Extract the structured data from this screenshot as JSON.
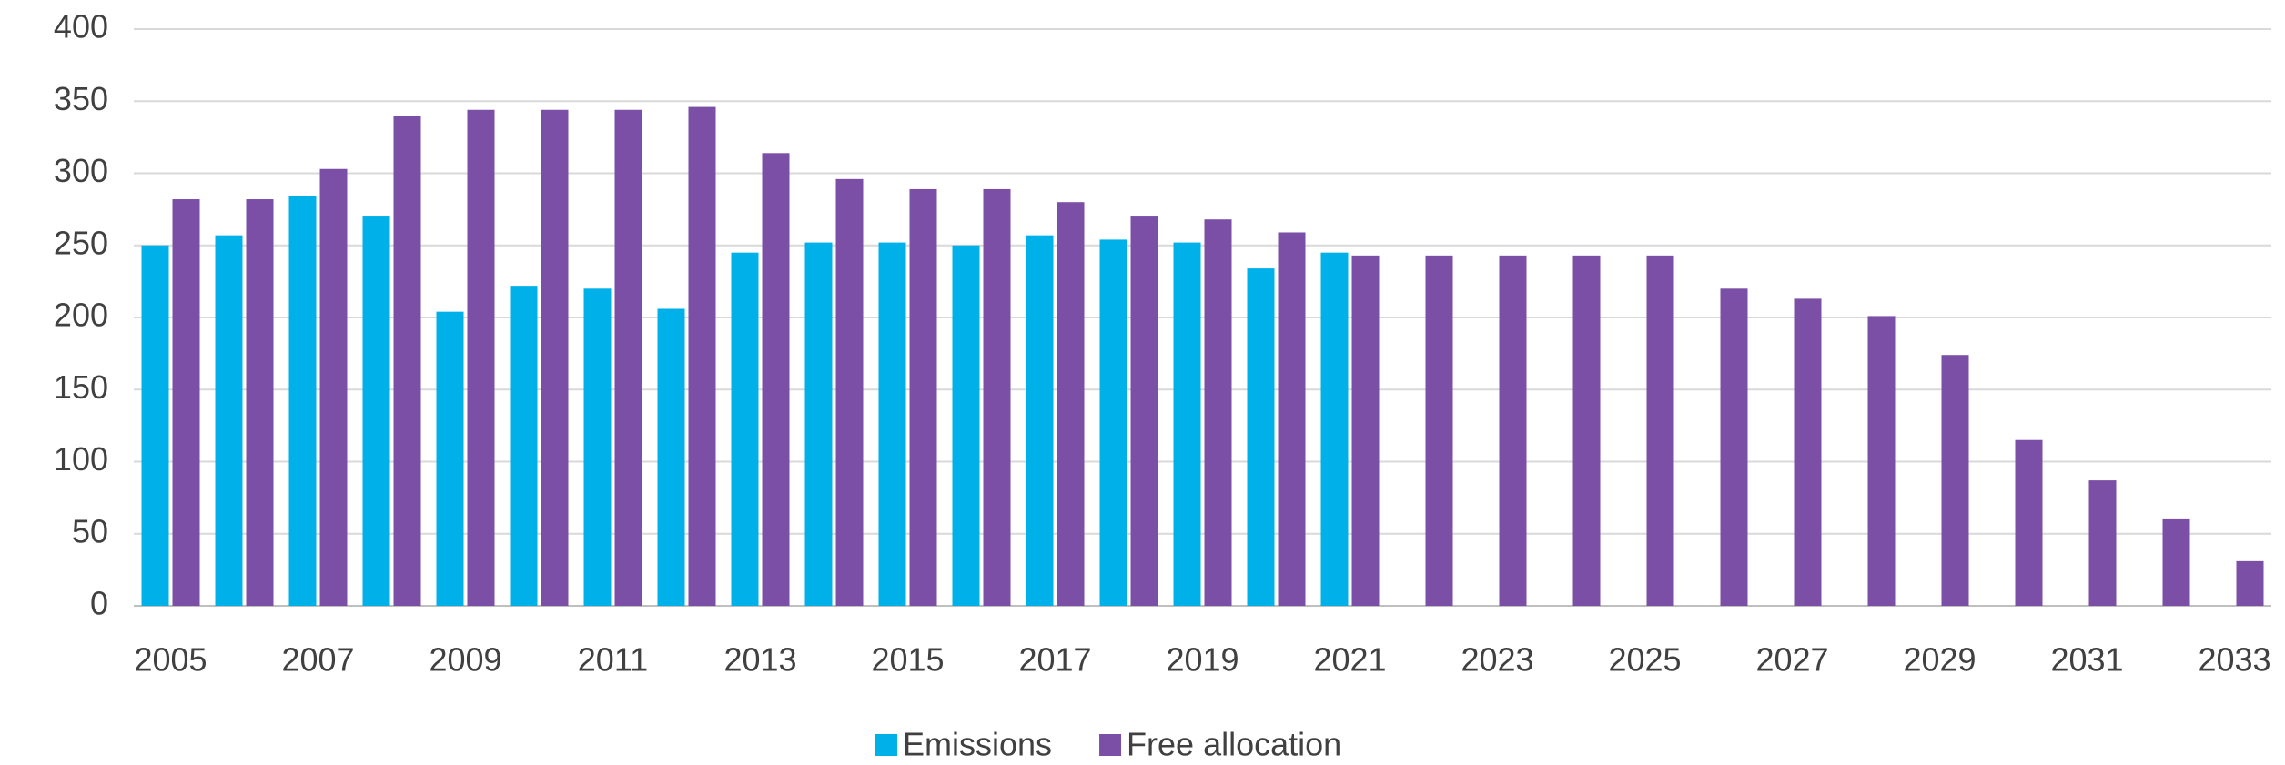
{
  "chart_data": {
    "type": "bar",
    "categories": [
      "2005",
      null,
      "2007",
      null,
      "2009",
      null,
      "2011",
      null,
      "2013",
      null,
      "2015",
      null,
      "2017",
      null,
      "2019",
      null,
      "2021",
      null,
      "2023",
      null,
      "2025",
      null,
      "2027",
      null,
      "2029",
      null,
      "2031",
      null,
      "2033"
    ],
    "series": [
      {
        "name": "Emissions",
        "color": "#00b0e8",
        "values": [
          250,
          257,
          284,
          270,
          204,
          222,
          220,
          206,
          245,
          252,
          252,
          250,
          257,
          254,
          252,
          234,
          245,
          null,
          null,
          null,
          null,
          null,
          null,
          null,
          null,
          null,
          null,
          null,
          null
        ]
      },
      {
        "name": "Free allocation",
        "color": "#7b4fa6",
        "values": [
          282,
          282,
          303,
          340,
          344,
          344,
          344,
          346,
          314,
          296,
          289,
          289,
          280,
          270,
          268,
          259,
          243,
          243,
          243,
          243,
          243,
          220,
          213,
          201,
          174,
          115,
          87,
          60,
          31
        ]
      }
    ],
    "ylim": [
      0,
      400
    ],
    "yticks": [
      0,
      50,
      100,
      150,
      200,
      250,
      300,
      350,
      400
    ],
    "grid": true,
    "legend": "bottom"
  }
}
